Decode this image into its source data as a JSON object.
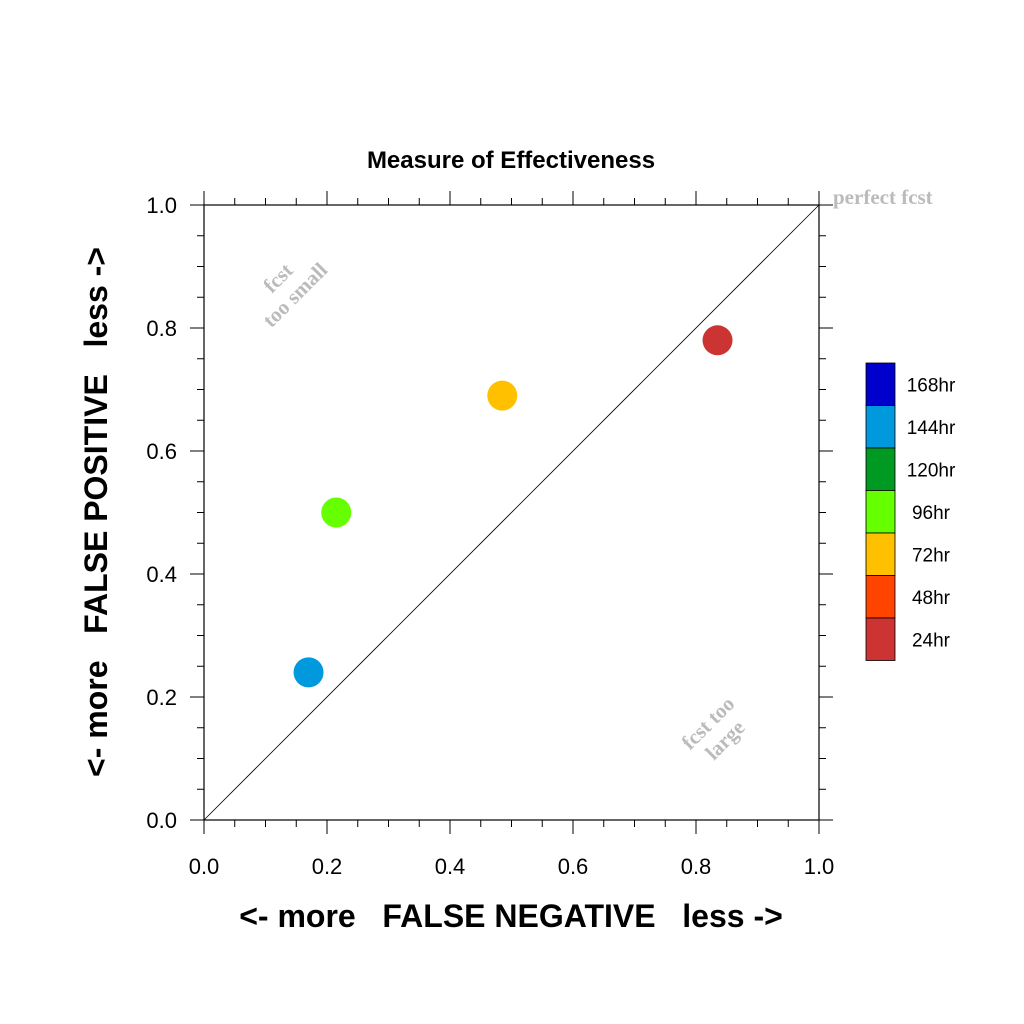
{
  "chart_data": {
    "type": "scatter",
    "title": "Measure of Effectiveness",
    "xlabel": "<- more   FALSE NEGATIVE   less ->",
    "ylabel": "<- more   FALSE POSITIVE   less ->",
    "xlim": [
      0,
      1
    ],
    "ylim": [
      0,
      1
    ],
    "xticks": [
      "0.0",
      "0.2",
      "0.4",
      "0.6",
      "0.8",
      "1.0"
    ],
    "yticks": [
      "0.0",
      "0.2",
      "0.4",
      "0.6",
      "0.8",
      "1.0"
    ],
    "grid": false,
    "points": [
      {
        "label": "144hr",
        "x": 0.17,
        "y": 0.24,
        "color": "#0099dd"
      },
      {
        "label": "96hr",
        "x": 0.215,
        "y": 0.5,
        "color": "#66ff00"
      },
      {
        "label": "72hr",
        "x": 0.485,
        "y": 0.69,
        "color": "#ffc000"
      },
      {
        "label": "24hr",
        "x": 0.835,
        "y": 0.78,
        "color": "#cc3333"
      }
    ],
    "reference_line": {
      "from": [
        0,
        0
      ],
      "to": [
        1,
        1
      ],
      "color": "#000000"
    },
    "annotations": {
      "perfect": "perfect fcst",
      "small_line1": "fcst",
      "small_line2": "too small",
      "large_line1": "fcst too",
      "large_line2": "large",
      "color": "#bbbbbb"
    },
    "legend": {
      "placement": "right",
      "items": [
        {
          "label": "168hr",
          "color": "#0000cc"
        },
        {
          "label": "144hr",
          "color": "#0099dd"
        },
        {
          "label": "120hr",
          "color": "#009922"
        },
        {
          "label": "96hr",
          "color": "#66ff00"
        },
        {
          "label": "72hr",
          "color": "#ffc000"
        },
        {
          "label": "48hr",
          "color": "#ff4400"
        },
        {
          "label": "24hr",
          "color": "#cc3333"
        }
      ]
    }
  }
}
